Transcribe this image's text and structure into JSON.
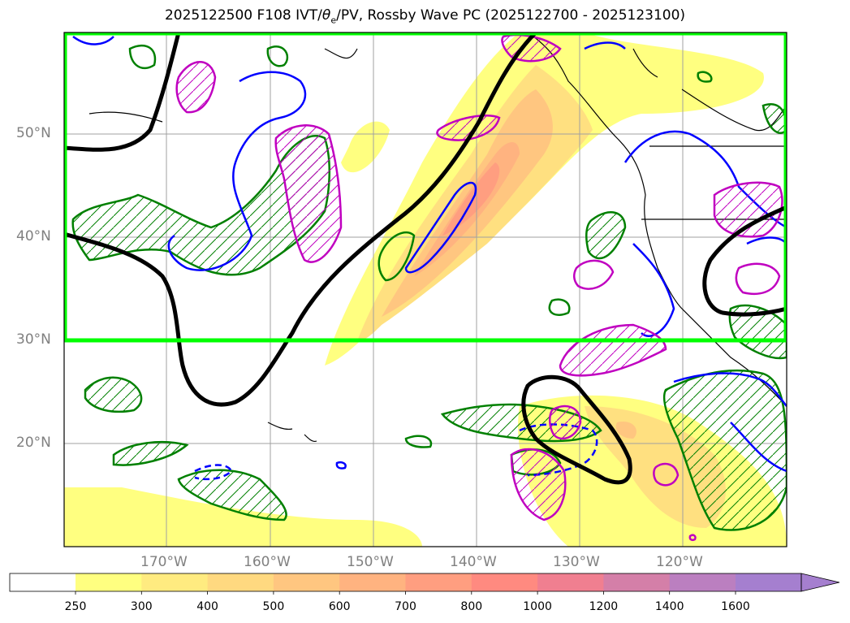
{
  "title": "2025122500 F108 IVT/θe/PV, Rossby Wave PC (2025122700 - 2025123100)",
  "title_parts": {
    "prefix": "2025122500 F108 IVT/",
    "theta": "θ",
    "theta_sub": "e",
    "suffix": "/PV, Rossby Wave PC (2025122700 - 2025123100)"
  },
  "lat_labels": [
    "50°N",
    "40°N",
    "30°N",
    "20°N"
  ],
  "lon_labels": [
    "170°W",
    "160°W",
    "150°W",
    "140°W",
    "130°W",
    "120°W"
  ],
  "colorbar": {
    "ticks": [
      "250",
      "300",
      "400",
      "500",
      "600",
      "700",
      "800",
      "1000",
      "1200",
      "1400",
      "1600"
    ],
    "colors": [
      "#ffff80",
      "#ffeb80",
      "#ffd980",
      "#ffc680",
      "#ffb380",
      "#ff9e80",
      "#ff8a80",
      "#f07f90",
      "#d47fa8",
      "#bb7fc0",
      "#a57fcf"
    ],
    "extend": "max"
  },
  "colors": {
    "region_box": "#00ff00",
    "rossby_line": "#000000",
    "pv_contour": "#008000",
    "theta_e_warm": "#0000ff",
    "theta_e_cold": "#c000c0"
  }
}
